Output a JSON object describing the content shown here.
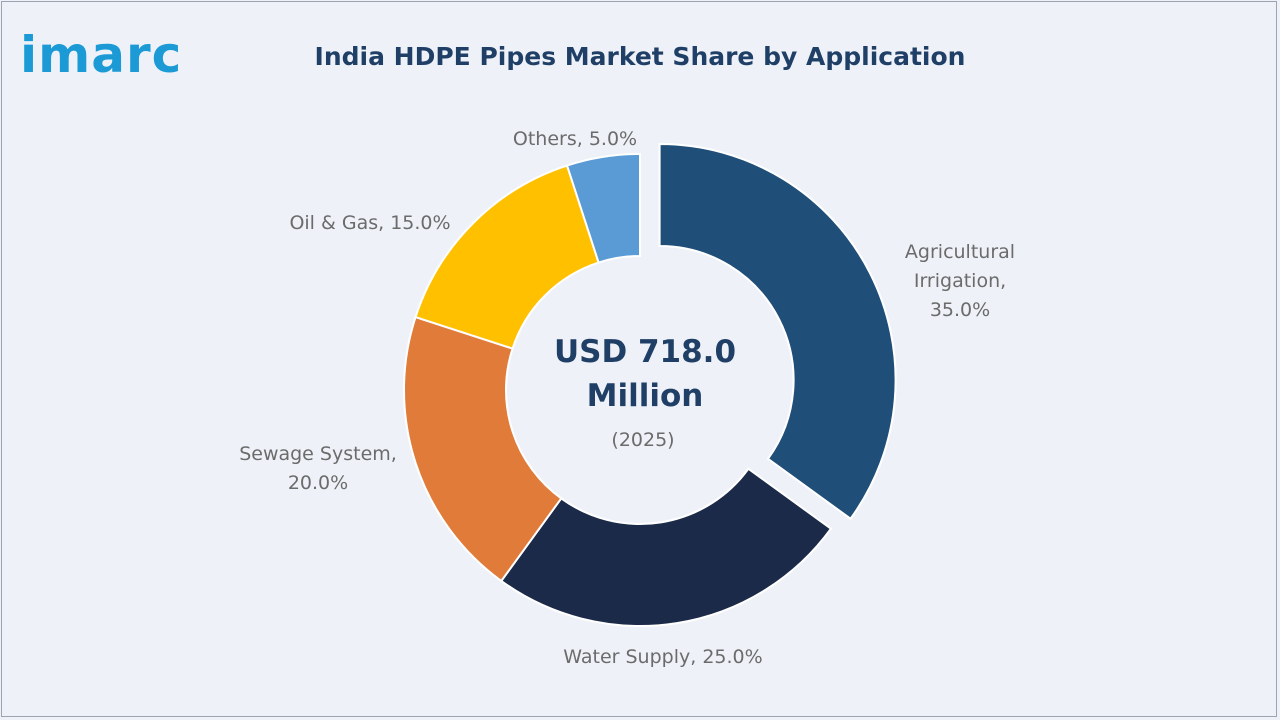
{
  "brand": {
    "logo_text": "imarc",
    "logo_color": "#1b9ad6"
  },
  "chart_data": {
    "type": "pie",
    "title": "India HDPE Pipes Market Share by Application",
    "center_label": {
      "value_line1": "USD 718.0",
      "value_line2": "Million",
      "year": "(2025)"
    },
    "unit": "%",
    "slices": [
      {
        "label": "Agricultural Irrigation",
        "label_lines": [
          "Agricultural",
          "Irrigation,",
          "35.0%"
        ],
        "value": 35.0,
        "color": "#1f4e79",
        "exploded": true
      },
      {
        "label": "Water Supply",
        "label_lines": [
          "Water Supply, 25.0%"
        ],
        "value": 25.0,
        "color": "#1c2a4a",
        "exploded": false
      },
      {
        "label": "Sewage System",
        "label_lines": [
          "Sewage System,",
          "20.0%"
        ],
        "value": 20.0,
        "color": "#e07b39",
        "exploded": false
      },
      {
        "label": "Oil & Gas",
        "label_lines": [
          "Oil & Gas, 15.0%"
        ],
        "value": 15.0,
        "color": "#ffc000",
        "exploded": false
      },
      {
        "label": "Others",
        "label_lines": [
          "Others, 5.0%"
        ],
        "value": 5.0,
        "color": "#5b9bd5",
        "exploded": false
      }
    ]
  }
}
